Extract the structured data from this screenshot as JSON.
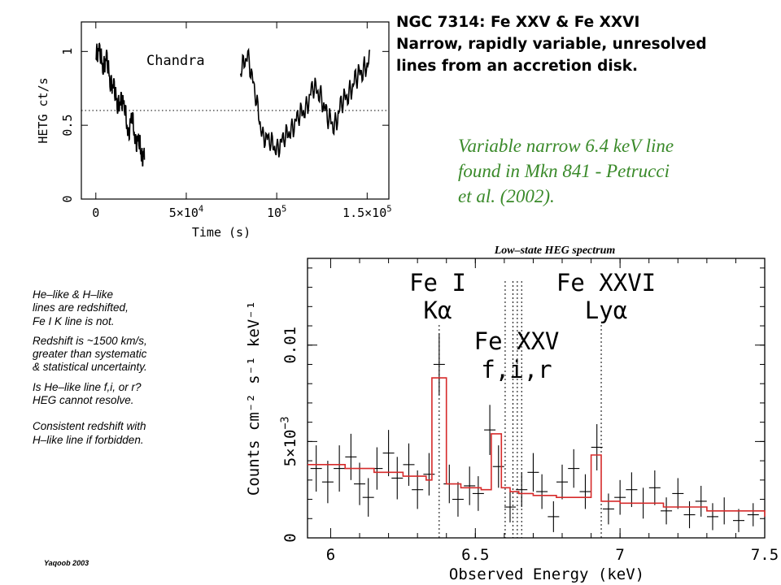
{
  "heading": {
    "line1": "NGC 7314: Fe XXV & Fe XXVI",
    "line2": "Narrow, rapidly variable, unresolved",
    "line3": "lines from an accretion disk."
  },
  "note": {
    "line1": "Variable narrow 6.4 keV line",
    "line2": "found in Mkn 841 - Petrucci",
    "line3": "et al.  (2002)."
  },
  "sidebar": {
    "p1": [
      "He–like & H–like",
      "lines are redshifted,",
      "Fe I K line is not."
    ],
    "p2": [
      "Redshift is ~1500 km/s,",
      "greater than systematic",
      "& statistical uncertainty."
    ],
    "p3": [
      "Is He–like line f,i, or r?",
      "HEG cannot resolve."
    ],
    "p4": [
      "Consistent  redshift with",
      "H–like line if forbidden."
    ]
  },
  "credit": "Yaqoob 2003",
  "chart_data": [
    {
      "type": "line",
      "annotation": "Chandra",
      "xlabel": "Time (s)",
      "ylabel": "HETG ct/s",
      "xlim": [
        -8000,
        162000
      ],
      "ylim": [
        0,
        1.2
      ],
      "xticks": [
        {
          "value": 0,
          "label": "0"
        },
        {
          "value": 50000,
          "label": "5×10",
          "exp": "4"
        },
        {
          "value": 100000,
          "label": "10",
          "exp": "5"
        },
        {
          "value": 150000,
          "label": "1.5×10",
          "exp": "5"
        }
      ],
      "yticks": [
        {
          "value": 0,
          "label": "0"
        },
        {
          "value": 0.5,
          "label": "0.5"
        },
        {
          "value": 1,
          "label": "1"
        }
      ],
      "reference_line": 0.6,
      "segments": [
        {
          "x": [
            0,
            2000,
            4000,
            6000,
            8000,
            10000,
            12000,
            14000,
            16000,
            18000,
            20000,
            22000,
            24000,
            25500,
            27000
          ],
          "y": [
            0.95,
            1.05,
            0.85,
            1.0,
            0.75,
            0.8,
            0.6,
            0.7,
            0.6,
            0.45,
            0.55,
            0.4,
            0.38,
            0.3,
            0.28
          ]
        },
        {
          "x": [
            80000,
            84000,
            88000,
            92000,
            96000,
            100000,
            104000,
            108000,
            112000,
            116000,
            120000,
            124000,
            128000,
            132000,
            136000,
            140000,
            144000,
            148000,
            152000
          ],
          "y": [
            0.85,
            1.0,
            0.7,
            0.45,
            0.38,
            0.35,
            0.4,
            0.48,
            0.55,
            0.62,
            0.75,
            0.72,
            0.55,
            0.5,
            0.65,
            0.72,
            0.82,
            0.88,
            0.95
          ]
        }
      ]
    },
    {
      "type": "line",
      "title": "Low–state HEG spectrum",
      "xlabel": "Observed Energy (keV)",
      "ylabel": "Counts cm⁻² s⁻¹ keV⁻¹",
      "xlim": [
        5.92,
        7.5
      ],
      "ylim": [
        0,
        0.0145
      ],
      "xticks": [
        {
          "value": 6,
          "label": "6"
        },
        {
          "value": 6.5,
          "label": "6.5"
        },
        {
          "value": 7,
          "label": "7"
        },
        {
          "value": 7.5,
          "label": "7.5"
        }
      ],
      "yticks": [
        {
          "value": 0,
          "label": "0"
        },
        {
          "value": 0.005,
          "label": "5×10",
          "exp": "−3"
        },
        {
          "value": 0.01,
          "label": "0.01"
        }
      ],
      "lines": [
        {
          "x": 6.375,
          "label1": "Fe I",
          "label2": "Kα"
        },
        {
          "x": 6.603,
          "label1": "",
          "label2": ""
        },
        {
          "x": 6.63,
          "label1": "Fe XXV",
          "label2": "f,i,r"
        },
        {
          "x": 6.645,
          "label1": "",
          "label2": ""
        },
        {
          "x": 6.66,
          "label1": "",
          "label2": ""
        },
        {
          "x": 6.935,
          "label1": "Fe XXVI",
          "label2": "Lyα"
        }
      ],
      "model": {
        "name": "model",
        "x": [
          5.92,
          6.05,
          6.15,
          6.25,
          6.33,
          6.35,
          6.4,
          6.45,
          6.52,
          6.555,
          6.59,
          6.62,
          6.65,
          6.7,
          6.78,
          6.9,
          6.935,
          7.0,
          7.15,
          7.3,
          7.5
        ],
        "y": [
          0.0038,
          0.0036,
          0.0034,
          0.0032,
          0.003,
          0.0083,
          0.0028,
          0.0026,
          0.0025,
          0.0054,
          0.0026,
          0.0024,
          0.0023,
          0.0022,
          0.0021,
          0.0043,
          0.0019,
          0.0018,
          0.0016,
          0.0014,
          0.0011
        ]
      },
      "data_points": [
        {
          "x": 5.95,
          "y": 0.0036,
          "err": 0.0012
        },
        {
          "x": 5.99,
          "y": 0.0029,
          "err": 0.0011
        },
        {
          "x": 6.03,
          "y": 0.0036,
          "err": 0.0012
        },
        {
          "x": 6.07,
          "y": 0.0042,
          "err": 0.0012
        },
        {
          "x": 6.1,
          "y": 0.0028,
          "err": 0.0011
        },
        {
          "x": 6.13,
          "y": 0.0021,
          "err": 0.001
        },
        {
          "x": 6.16,
          "y": 0.0036,
          "err": 0.0011
        },
        {
          "x": 6.2,
          "y": 0.0044,
          "err": 0.0012
        },
        {
          "x": 6.23,
          "y": 0.0031,
          "err": 0.0011
        },
        {
          "x": 6.27,
          "y": 0.0038,
          "err": 0.0011
        },
        {
          "x": 6.3,
          "y": 0.0025,
          "err": 0.001
        },
        {
          "x": 6.34,
          "y": 0.0033,
          "err": 0.0011
        },
        {
          "x": 6.375,
          "y": 0.009,
          "err": 0.0016
        },
        {
          "x": 6.41,
          "y": 0.0028,
          "err": 0.001
        },
        {
          "x": 6.44,
          "y": 0.002,
          "err": 0.0009
        },
        {
          "x": 6.48,
          "y": 0.0027,
          "err": 0.001
        },
        {
          "x": 6.51,
          "y": 0.0023,
          "err": 0.0009
        },
        {
          "x": 6.55,
          "y": 0.0056,
          "err": 0.0013
        },
        {
          "x": 6.58,
          "y": 0.0037,
          "err": 0.0011
        },
        {
          "x": 6.62,
          "y": 0.0016,
          "err": 0.0008
        },
        {
          "x": 6.66,
          "y": 0.0025,
          "err": 0.0009
        },
        {
          "x": 6.7,
          "y": 0.0034,
          "err": 0.001
        },
        {
          "x": 6.73,
          "y": 0.0024,
          "err": 0.0009
        },
        {
          "x": 6.77,
          "y": 0.0011,
          "err": 0.0008
        },
        {
          "x": 6.8,
          "y": 0.0029,
          "err": 0.0009
        },
        {
          "x": 6.84,
          "y": 0.0036,
          "err": 0.001
        },
        {
          "x": 6.88,
          "y": 0.0024,
          "err": 0.0009
        },
        {
          "x": 6.92,
          "y": 0.0047,
          "err": 0.0012
        },
        {
          "x": 6.96,
          "y": 0.0015,
          "err": 0.0008
        },
        {
          "x": 7.0,
          "y": 0.0021,
          "err": 0.0009
        },
        {
          "x": 7.04,
          "y": 0.0025,
          "err": 0.0009
        },
        {
          "x": 7.08,
          "y": 0.0018,
          "err": 0.0008
        },
        {
          "x": 7.12,
          "y": 0.0026,
          "err": 0.0009
        },
        {
          "x": 7.16,
          "y": 0.0014,
          "err": 0.0007
        },
        {
          "x": 7.2,
          "y": 0.0023,
          "err": 0.0008
        },
        {
          "x": 7.24,
          "y": 0.0012,
          "err": 0.0007
        },
        {
          "x": 7.28,
          "y": 0.0019,
          "err": 0.0008
        },
        {
          "x": 7.32,
          "y": 0.0011,
          "err": 0.0007
        },
        {
          "x": 7.36,
          "y": 0.0014,
          "err": 0.0007
        },
        {
          "x": 7.41,
          "y": 0.0009,
          "err": 0.0006
        },
        {
          "x": 7.46,
          "y": 0.0012,
          "err": 0.0006
        }
      ]
    }
  ]
}
